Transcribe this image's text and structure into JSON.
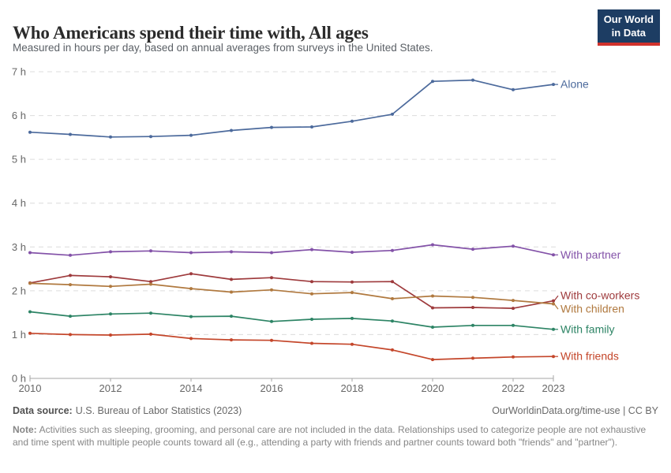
{
  "header": {
    "title": "Who Americans spend their time with, All ages",
    "subtitle": "Measured in hours per day, based on annual averages from surveys in the United States."
  },
  "logo": {
    "line1": "Our World",
    "line2": "in Data",
    "bg_color": "#1d3d63",
    "accent_color": "#d1322c"
  },
  "chart_data": {
    "type": "line",
    "title": "Who Americans spend their time with, All ages",
    "unit": "hours per day",
    "x": [
      2010,
      2011,
      2012,
      2013,
      2014,
      2015,
      2016,
      2017,
      2018,
      2019,
      2020,
      2021,
      2022,
      2023
    ],
    "series": [
      {
        "name": "Alone",
        "color": "#4c6a9c",
        "values": [
          5.62,
          5.57,
          5.51,
          5.52,
          5.55,
          5.66,
          5.73,
          5.74,
          5.87,
          6.03,
          6.78,
          6.81,
          6.59,
          6.71
        ]
      },
      {
        "name": "With partner",
        "color": "#8352a8",
        "values": [
          2.87,
          2.81,
          2.89,
          2.91,
          2.87,
          2.89,
          2.87,
          2.94,
          2.88,
          2.92,
          3.05,
          2.95,
          3.02,
          2.82
        ]
      },
      {
        "name": "With co-workers",
        "color": "#9e3a3c",
        "values": [
          2.18,
          2.35,
          2.32,
          2.21,
          2.39,
          2.26,
          2.3,
          2.21,
          2.2,
          2.21,
          1.61,
          1.62,
          1.6,
          1.77
        ]
      },
      {
        "name": "With children",
        "color": "#b0793f",
        "values": [
          2.17,
          2.14,
          2.1,
          2.15,
          2.05,
          1.97,
          2.02,
          1.93,
          1.96,
          1.82,
          1.88,
          1.85,
          1.78,
          1.7
        ]
      },
      {
        "name": "With family",
        "color": "#2d8465",
        "values": [
          1.52,
          1.42,
          1.47,
          1.49,
          1.41,
          1.42,
          1.3,
          1.35,
          1.37,
          1.31,
          1.17,
          1.21,
          1.21,
          1.12
        ]
      },
      {
        "name": "With friends",
        "color": "#c4462a",
        "values": [
          1.03,
          1.0,
          0.99,
          1.01,
          0.91,
          0.88,
          0.87,
          0.8,
          0.78,
          0.65,
          0.43,
          0.46,
          0.49,
          0.5
        ]
      }
    ],
    "ylim": [
      0,
      7
    ],
    "yticks": [
      {
        "v": 0,
        "label": "0 h"
      },
      {
        "v": 1,
        "label": "1 h"
      },
      {
        "v": 2,
        "label": "2 h"
      },
      {
        "v": 3,
        "label": "3 h"
      },
      {
        "v": 4,
        "label": "4 h"
      },
      {
        "v": 5,
        "label": "5 h"
      },
      {
        "v": 6,
        "label": "6 h"
      },
      {
        "v": 7,
        "label": "7 h"
      }
    ],
    "xticks": [
      2010,
      2012,
      2014,
      2016,
      2018,
      2020,
      2022,
      2023
    ],
    "grid": "horizontal-dashed",
    "legend_position": "end-of-line-labels",
    "colors": {
      "grid": "#dcdcdc",
      "axis": "#a5a5a5",
      "tick_text": "#666666"
    }
  },
  "footer": {
    "source_label": "Data source:",
    "source_value": "U.S. Bureau of Labor Statistics (2023)",
    "credit": "OurWorldinData.org/time-use | CC BY"
  },
  "note": {
    "label": "Note:",
    "text": "Activities such as sleeping, grooming, and personal care are not included in the data. Relationships used to categorize people are not exhaustive and time spent with multiple people counts toward all (e.g., attending a party with friends and partner counts toward both \"friends\" and \"partner\")."
  }
}
